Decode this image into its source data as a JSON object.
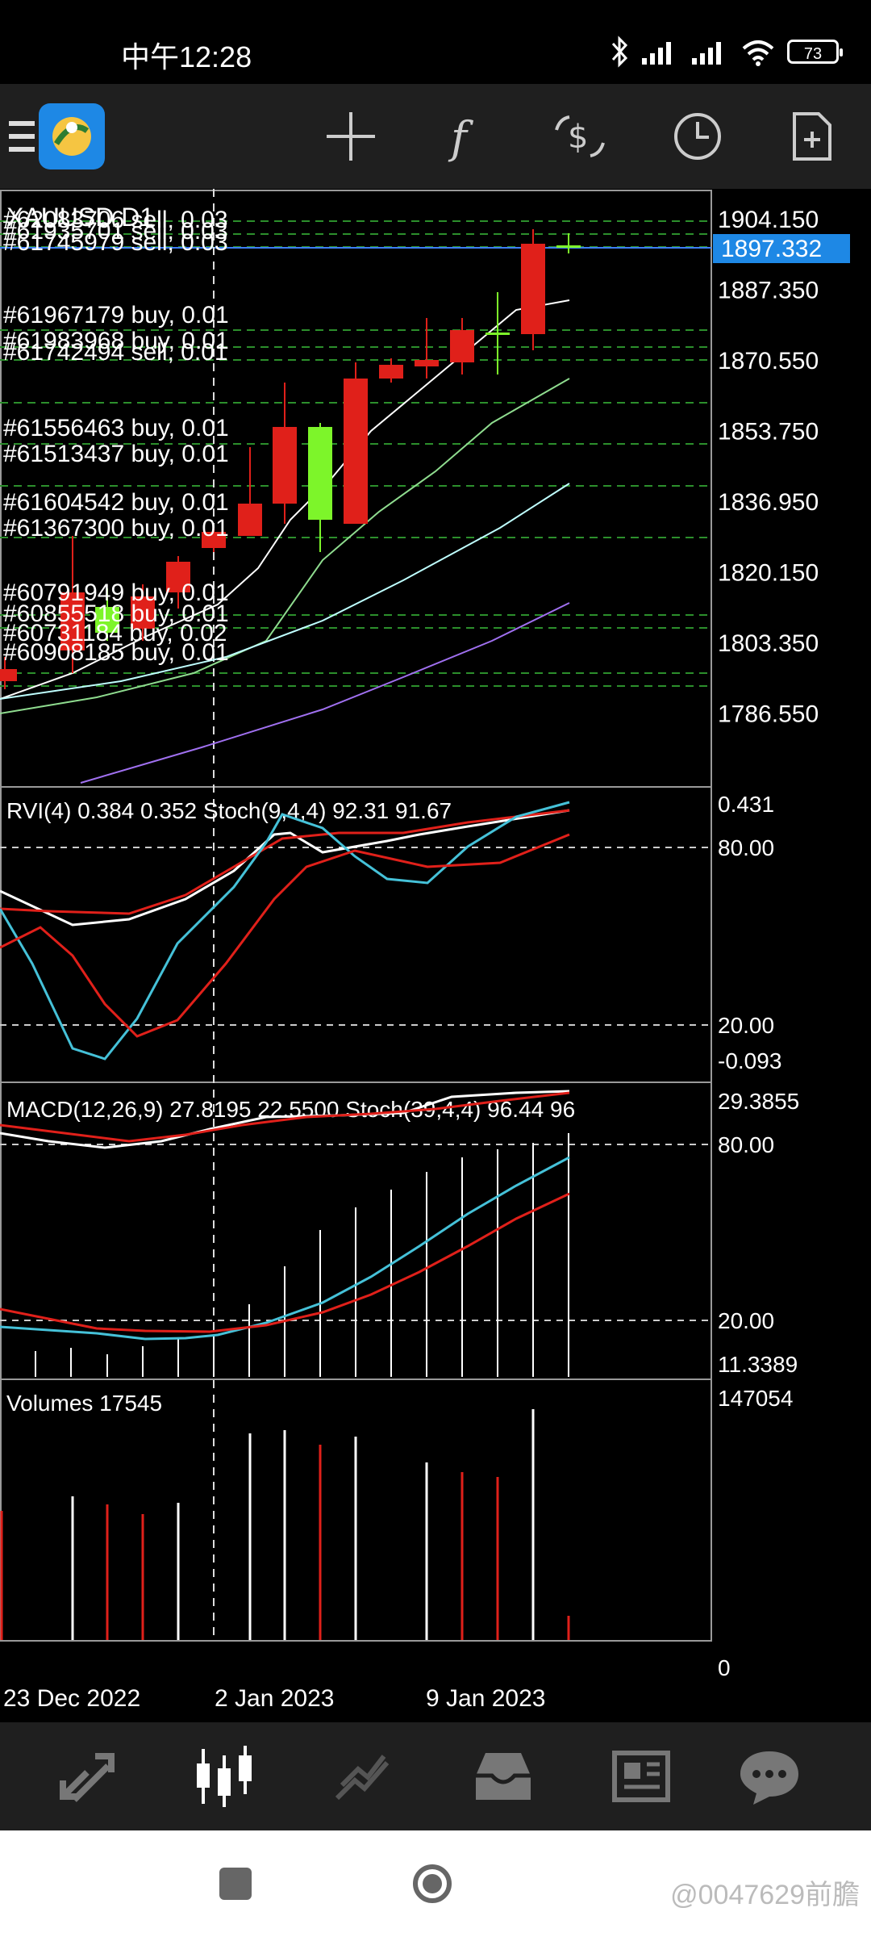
{
  "status_bar": {
    "time": "中午12:28",
    "battery": "73"
  },
  "toolbar": {
    "icons": [
      "menu-icon",
      "metatrader-logo",
      "crosshair-icon",
      "indicator-f-icon",
      "trade-dollar-icon",
      "clock-icon",
      "new-document-icon"
    ]
  },
  "chart": {
    "symbol_label": "XAUUSD,D1",
    "price_axis": [
      "1904.150",
      "1887.350",
      "1870.550",
      "1853.750",
      "1836.950",
      "1820.150",
      "1803.350",
      "1786.550"
    ],
    "current_price": "1897.332",
    "orders": [
      "#62083706 sell, 0.03",
      "#61935701 sell, 0.03",
      "#61745979 sell, 0.03",
      "#61967179 buy, 0.01",
      "#61983968 buy, 0.01",
      "#61742494 sell, 0.01",
      "#61556463 buy, 0.01",
      "#61513437 buy, 0.01",
      "#61604542 buy, 0.01",
      "#61367300 buy, 0.01",
      "#60791949 buy, 0.01",
      "#60855518 buy, 0.01",
      "#60731184 buy, 0.02",
      "#60908185 buy, 0.01"
    ],
    "date_labels": [
      "23 Dec 2022",
      "2 Jan 2023",
      "9 Jan 2023"
    ],
    "colors": {
      "bull": "#e0201a",
      "bear": "#7df52a",
      "price_line": "#3d7ef5",
      "price_badge": "#1e88e5",
      "ma1": "#ffffff",
      "ma2": "#8fdc8f",
      "ma3": "#bfffff",
      "ma4": "#a070f0"
    }
  },
  "rvi_panel": {
    "title": "RVI(4) 0.384 0.352 Stoch(9,4,4) 92.31 91.67",
    "axis_top": "0.431",
    "axis_80": "80.00",
    "axis_20": "20.00",
    "axis_bottom": "-0.093"
  },
  "macd_panel": {
    "title": "MACD(12,26,9) 27.8195 22.5500 Stoch(39,4,4) 96.44 96",
    "axis_top": "29.3855",
    "axis_80": "80.00",
    "axis_20": "20.00",
    "axis_bottom": "11.3389"
  },
  "volume_panel": {
    "title": "Volumes 17545",
    "axis_top": "147054",
    "axis_bottom": "0"
  },
  "bottom_nav": [
    "quotes-icon",
    "chart-icon",
    "trade-icon",
    "history-icon",
    "news-icon",
    "chat-icon"
  ],
  "watermark": "@0047629前膽"
}
